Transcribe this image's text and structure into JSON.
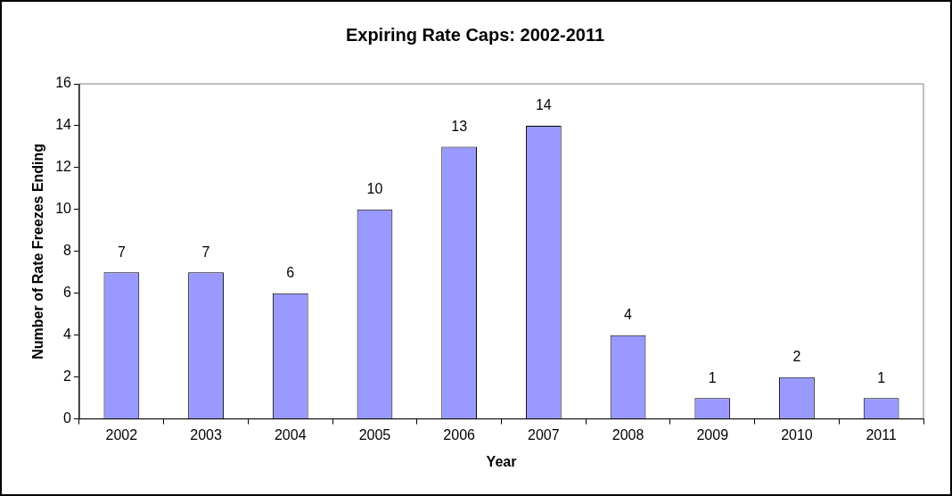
{
  "chart_data": {
    "type": "bar",
    "title": "Expiring Rate Caps: 2002-2011",
    "xlabel": "Year",
    "ylabel": "Number of Rate Freezes Ending",
    "categories": [
      "2002",
      "2003",
      "2004",
      "2005",
      "2006",
      "2007",
      "2008",
      "2009",
      "2010",
      "2011"
    ],
    "values": [
      7,
      7,
      6,
      10,
      13,
      14,
      4,
      1,
      2,
      1
    ],
    "color": "#9999ff",
    "ylim": [
      0,
      16
    ],
    "yticks": [
      0,
      2,
      4,
      6,
      8,
      10,
      12,
      14,
      16
    ],
    "data_labels": true
  }
}
